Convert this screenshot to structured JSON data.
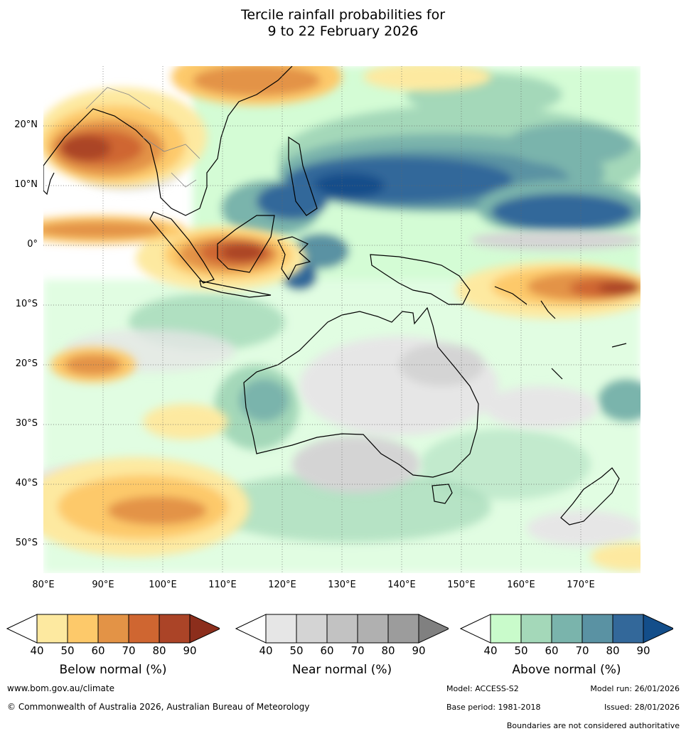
{
  "title": {
    "line1": "Tercile rainfall probabilities for",
    "line2": "9 to 22 February 2026"
  },
  "map": {
    "lat_labels": [
      "20°N",
      "10°N",
      "0°",
      "10°S",
      "20°S",
      "30°S",
      "40°S",
      "50°S"
    ],
    "lon_labels": [
      "80°E",
      "90°E",
      "100°E",
      "110°E",
      "120°E",
      "130°E",
      "140°E",
      "150°E",
      "160°E",
      "170°E"
    ],
    "regions": [
      "Australia",
      "Indonesia",
      "Papua New Guinea",
      "New Zealand",
      "Southeast Asia",
      "India"
    ]
  },
  "colorbars": [
    {
      "label": "Below normal (%)",
      "ticks": [
        "40",
        "50",
        "60",
        "70",
        "80",
        "90"
      ],
      "colors": [
        "#ffffff",
        "#fde9a0",
        "#fdc96a",
        "#e39346",
        "#cf6631",
        "#ab4427",
        "#8c2e1c"
      ]
    },
    {
      "label": "Near normal (%)",
      "ticks": [
        "40",
        "50",
        "60",
        "70",
        "80",
        "90"
      ],
      "colors": [
        "#ffffff",
        "#e6e6e6",
        "#d4d4d4",
        "#c2c2c2",
        "#b0b0b0",
        "#9c9c9c",
        "#808080"
      ]
    },
    {
      "label": "Above normal (%)",
      "ticks": [
        "40",
        "50",
        "60",
        "70",
        "80",
        "90"
      ],
      "colors": [
        "#ffffff",
        "#c9fbcb",
        "#a4d8b9",
        "#7ab4ac",
        "#5a92a3",
        "#33689a",
        "#134e8a"
      ]
    }
  ],
  "footer": {
    "website": "www.bom.gov.au/climate",
    "copyright": "© Commonwealth of Australia 2026, Australian Bureau of Meteorology",
    "model": "Model: ACCESS-S2",
    "model_run": "Model run: 26/01/2026",
    "base_period": "Base period: 1981-2018",
    "issued": "Issued: 28/01/2026",
    "disclaimer": "Boundaries are not considered authoritative"
  }
}
